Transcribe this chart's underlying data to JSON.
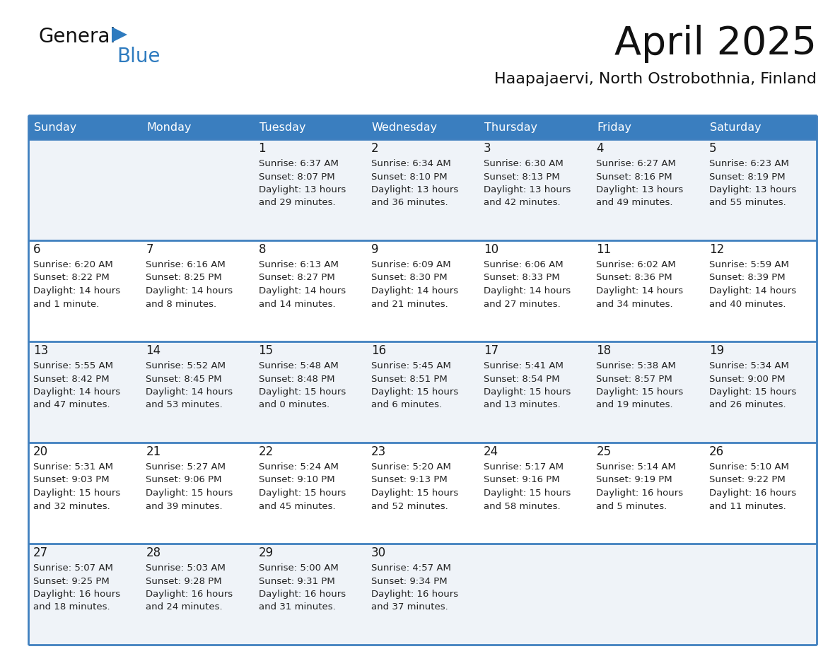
{
  "title": "April 2025",
  "subtitle": "Haapajaervi, North Ostrobothnia, Finland",
  "header_color": "#3a7ebf",
  "header_text_color": "#ffffff",
  "cell_bg_light": "#eff3f8",
  "cell_bg_white": "#ffffff",
  "border_color": "#4080bf",
  "text_color": "#1a1a1a",
  "info_color": "#222222",
  "day_names": [
    "Sunday",
    "Monday",
    "Tuesday",
    "Wednesday",
    "Thursday",
    "Friday",
    "Saturday"
  ],
  "weeks": [
    [
      {
        "day": "",
        "info": ""
      },
      {
        "day": "",
        "info": ""
      },
      {
        "day": "1",
        "info": "Sunrise: 6:37 AM\nSunset: 8:07 PM\nDaylight: 13 hours\nand 29 minutes."
      },
      {
        "day": "2",
        "info": "Sunrise: 6:34 AM\nSunset: 8:10 PM\nDaylight: 13 hours\nand 36 minutes."
      },
      {
        "day": "3",
        "info": "Sunrise: 6:30 AM\nSunset: 8:13 PM\nDaylight: 13 hours\nand 42 minutes."
      },
      {
        "day": "4",
        "info": "Sunrise: 6:27 AM\nSunset: 8:16 PM\nDaylight: 13 hours\nand 49 minutes."
      },
      {
        "day": "5",
        "info": "Sunrise: 6:23 AM\nSunset: 8:19 PM\nDaylight: 13 hours\nand 55 minutes."
      }
    ],
    [
      {
        "day": "6",
        "info": "Sunrise: 6:20 AM\nSunset: 8:22 PM\nDaylight: 14 hours\nand 1 minute."
      },
      {
        "day": "7",
        "info": "Sunrise: 6:16 AM\nSunset: 8:25 PM\nDaylight: 14 hours\nand 8 minutes."
      },
      {
        "day": "8",
        "info": "Sunrise: 6:13 AM\nSunset: 8:27 PM\nDaylight: 14 hours\nand 14 minutes."
      },
      {
        "day": "9",
        "info": "Sunrise: 6:09 AM\nSunset: 8:30 PM\nDaylight: 14 hours\nand 21 minutes."
      },
      {
        "day": "10",
        "info": "Sunrise: 6:06 AM\nSunset: 8:33 PM\nDaylight: 14 hours\nand 27 minutes."
      },
      {
        "day": "11",
        "info": "Sunrise: 6:02 AM\nSunset: 8:36 PM\nDaylight: 14 hours\nand 34 minutes."
      },
      {
        "day": "12",
        "info": "Sunrise: 5:59 AM\nSunset: 8:39 PM\nDaylight: 14 hours\nand 40 minutes."
      }
    ],
    [
      {
        "day": "13",
        "info": "Sunrise: 5:55 AM\nSunset: 8:42 PM\nDaylight: 14 hours\nand 47 minutes."
      },
      {
        "day": "14",
        "info": "Sunrise: 5:52 AM\nSunset: 8:45 PM\nDaylight: 14 hours\nand 53 minutes."
      },
      {
        "day": "15",
        "info": "Sunrise: 5:48 AM\nSunset: 8:48 PM\nDaylight: 15 hours\nand 0 minutes."
      },
      {
        "day": "16",
        "info": "Sunrise: 5:45 AM\nSunset: 8:51 PM\nDaylight: 15 hours\nand 6 minutes."
      },
      {
        "day": "17",
        "info": "Sunrise: 5:41 AM\nSunset: 8:54 PM\nDaylight: 15 hours\nand 13 minutes."
      },
      {
        "day": "18",
        "info": "Sunrise: 5:38 AM\nSunset: 8:57 PM\nDaylight: 15 hours\nand 19 minutes."
      },
      {
        "day": "19",
        "info": "Sunrise: 5:34 AM\nSunset: 9:00 PM\nDaylight: 15 hours\nand 26 minutes."
      }
    ],
    [
      {
        "day": "20",
        "info": "Sunrise: 5:31 AM\nSunset: 9:03 PM\nDaylight: 15 hours\nand 32 minutes."
      },
      {
        "day": "21",
        "info": "Sunrise: 5:27 AM\nSunset: 9:06 PM\nDaylight: 15 hours\nand 39 minutes."
      },
      {
        "day": "22",
        "info": "Sunrise: 5:24 AM\nSunset: 9:10 PM\nDaylight: 15 hours\nand 45 minutes."
      },
      {
        "day": "23",
        "info": "Sunrise: 5:20 AM\nSunset: 9:13 PM\nDaylight: 15 hours\nand 52 minutes."
      },
      {
        "day": "24",
        "info": "Sunrise: 5:17 AM\nSunset: 9:16 PM\nDaylight: 15 hours\nand 58 minutes."
      },
      {
        "day": "25",
        "info": "Sunrise: 5:14 AM\nSunset: 9:19 PM\nDaylight: 16 hours\nand 5 minutes."
      },
      {
        "day": "26",
        "info": "Sunrise: 5:10 AM\nSunset: 9:22 PM\nDaylight: 16 hours\nand 11 minutes."
      }
    ],
    [
      {
        "day": "27",
        "info": "Sunrise: 5:07 AM\nSunset: 9:25 PM\nDaylight: 16 hours\nand 18 minutes."
      },
      {
        "day": "28",
        "info": "Sunrise: 5:03 AM\nSunset: 9:28 PM\nDaylight: 16 hours\nand 24 minutes."
      },
      {
        "day": "29",
        "info": "Sunrise: 5:00 AM\nSunset: 9:31 PM\nDaylight: 16 hours\nand 31 minutes."
      },
      {
        "day": "30",
        "info": "Sunrise: 4:57 AM\nSunset: 9:34 PM\nDaylight: 16 hours\nand 37 minutes."
      },
      {
        "day": "",
        "info": ""
      },
      {
        "day": "",
        "info": ""
      },
      {
        "day": "",
        "info": ""
      }
    ]
  ],
  "logo_general_color": "#111111",
  "logo_blue_color": "#2e7bbf",
  "logo_triangle_color": "#2e7bbf",
  "title_fontsize": 40,
  "subtitle_fontsize": 16,
  "header_fontsize": 11.5,
  "day_num_fontsize": 12,
  "info_fontsize": 9.5
}
